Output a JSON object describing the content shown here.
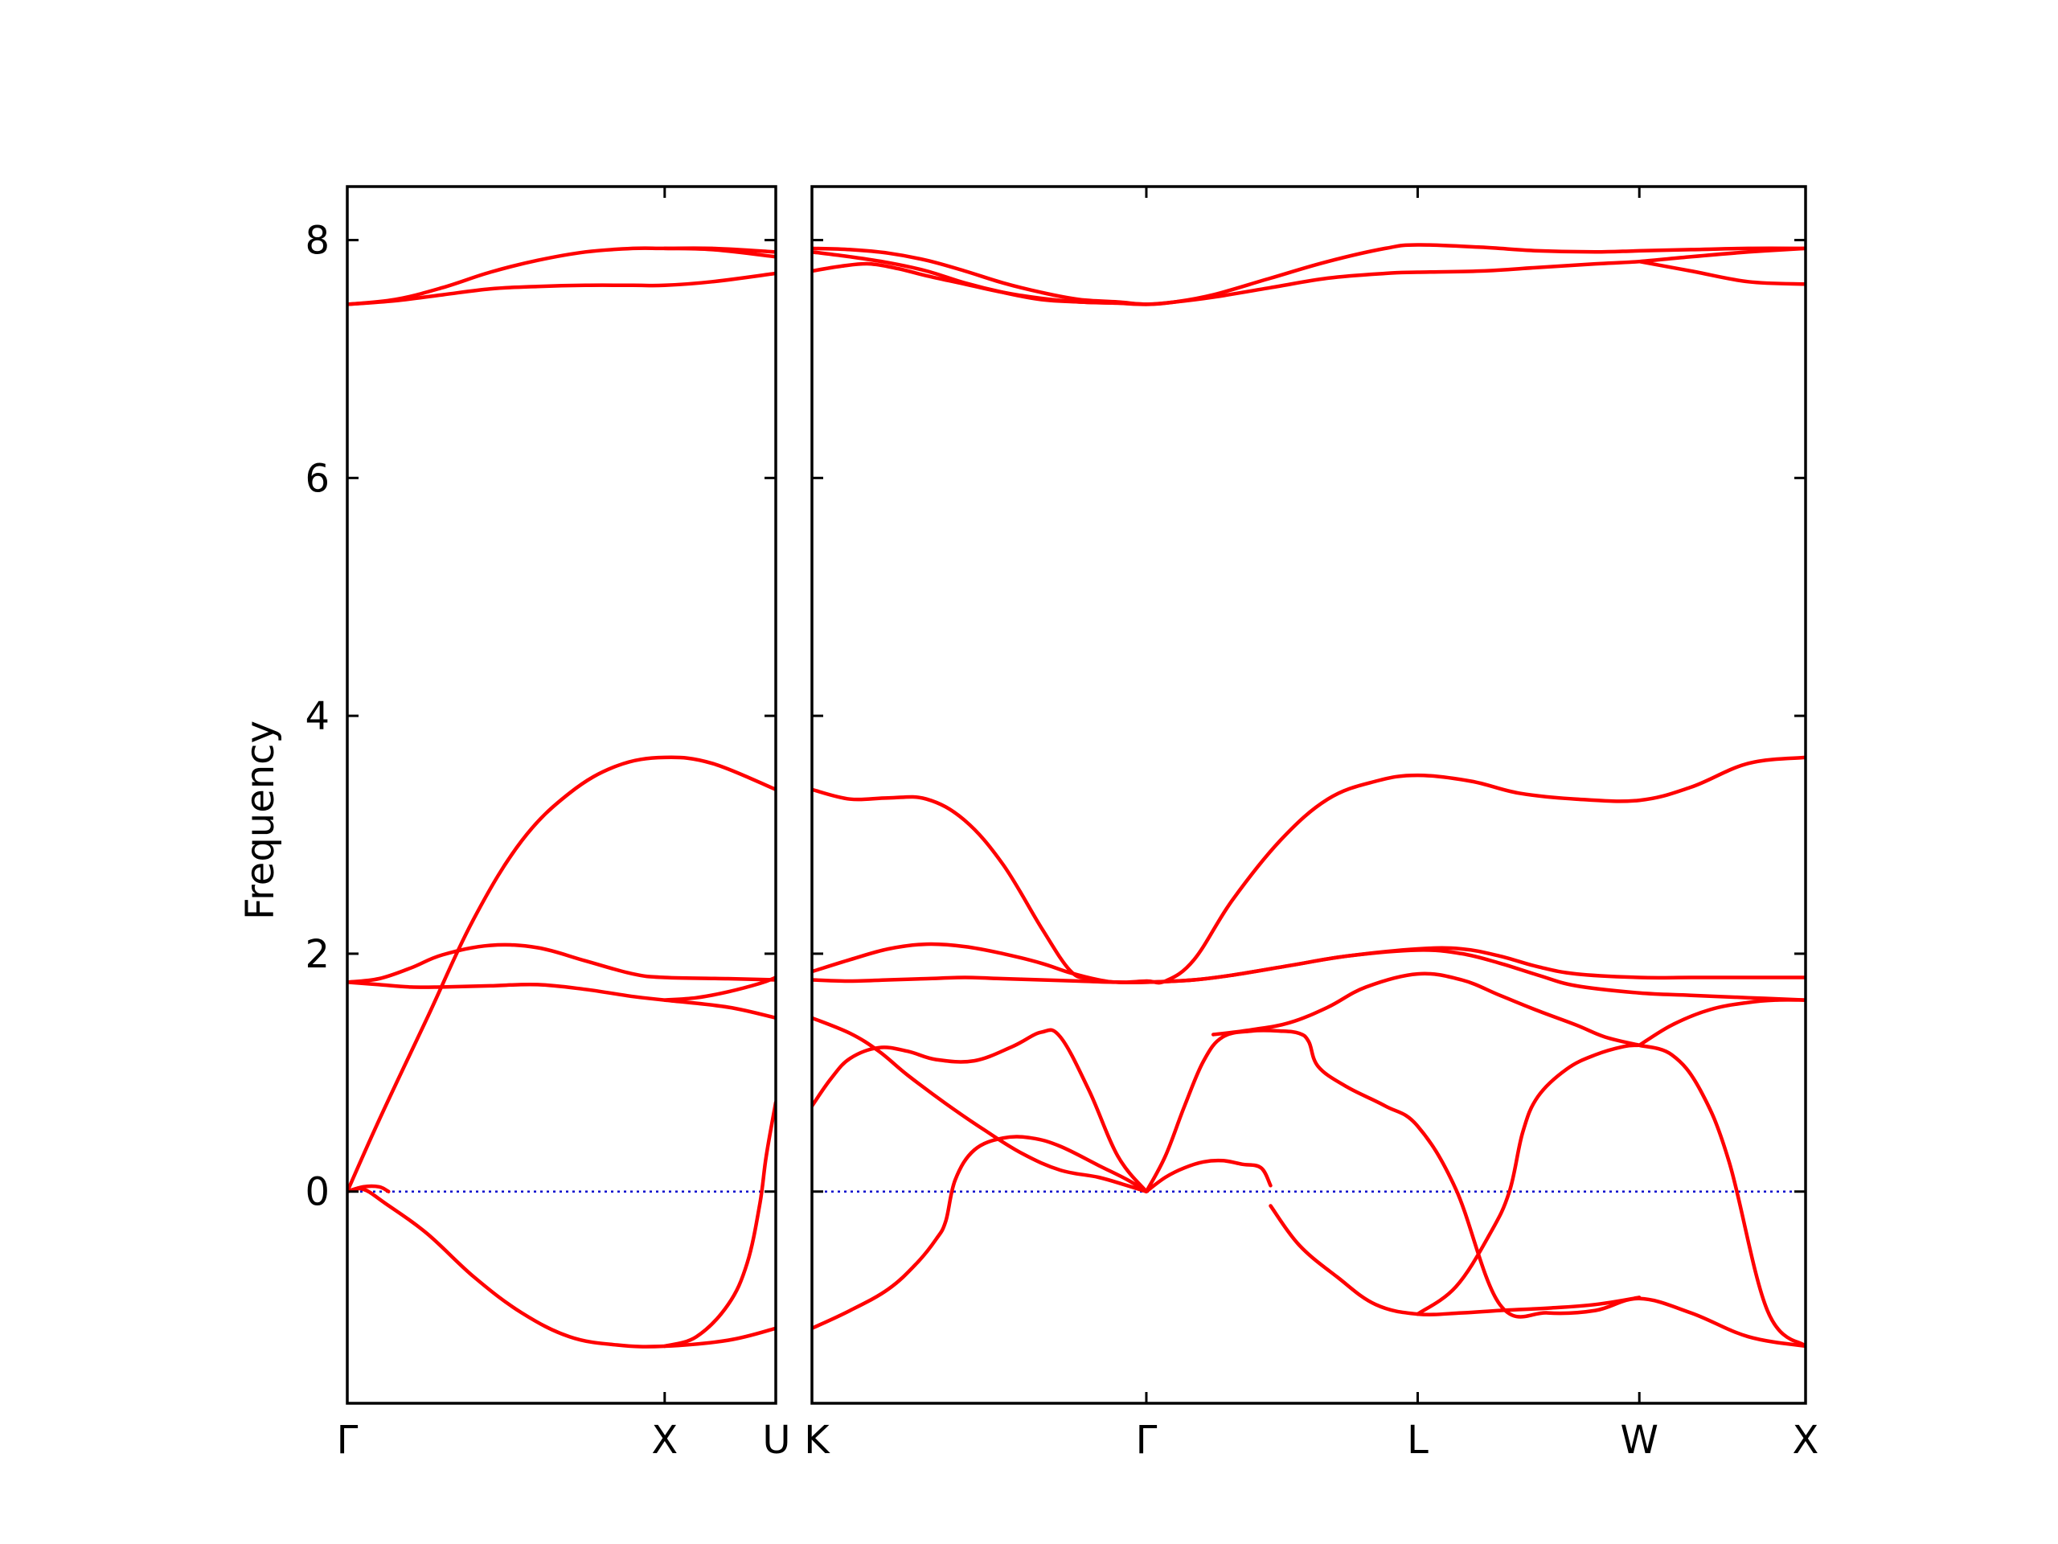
{
  "chart_data": {
    "type": "line",
    "ylabel": "Frequency",
    "ylim": [
      -1.78,
      8.45
    ],
    "yticks": [
      0,
      2,
      4,
      6,
      8
    ],
    "grid": false,
    "legend": "none",
    "colors": {
      "bands": "#ff0000",
      "zero_line": "#0000cc",
      "axes": "#000000"
    },
    "panels": [
      {
        "xrange": [
          0,
          1.35
        ],
        "ticks": [
          {
            "x": 0,
            "label": "Γ"
          },
          {
            "x": 1.0,
            "label": "X"
          },
          {
            "x": 1.35,
            "label": "U"
          }
        ],
        "series": [
          {
            "x": [
              0,
              0.05,
              0.12,
              0.25,
              0.4,
              0.55,
              0.7,
              0.85,
              1.0,
              1.2,
              1.35
            ],
            "y": [
              0.0,
              0.02,
              -0.1,
              -0.35,
              -0.72,
              -1.02,
              -1.22,
              -1.29,
              -1.3,
              -1.25,
              -1.15
            ]
          },
          {
            "x": [
              0,
              0.05,
              0.1,
              0.13
            ],
            "y": [
              0.0,
              0.04,
              0.04,
              0.0
            ]
          },
          {
            "x": [
              1.0,
              1.1,
              1.2,
              1.26,
              1.3,
              1.32,
              1.35
            ],
            "y": [
              -1.3,
              -1.22,
              -0.95,
              -0.6,
              -0.1,
              0.3,
              0.75
            ]
          },
          {
            "x": [
              0,
              0.1,
              0.25,
              0.4,
              0.55,
              0.7,
              0.85,
              1.0,
              1.15,
              1.35
            ],
            "y": [
              0.0,
              0.6,
              1.45,
              2.3,
              2.95,
              3.35,
              3.58,
              3.65,
              3.6,
              3.38
            ]
          },
          {
            "x": [
              0,
              0.1,
              0.2,
              0.3,
              0.45,
              0.6,
              0.75,
              0.9,
              1.0,
              1.2,
              1.35
            ],
            "y": [
              1.76,
              1.74,
              1.72,
              1.72,
              1.73,
              1.74,
              1.7,
              1.64,
              1.61,
              1.55,
              1.46
            ]
          },
          {
            "x": [
              0,
              0.1,
              0.2,
              0.3,
              0.45,
              0.6,
              0.75,
              0.9,
              1.0,
              1.2,
              1.35
            ],
            "y": [
              1.76,
              1.79,
              1.88,
              1.99,
              2.07,
              2.05,
              1.94,
              1.83,
              1.8,
              1.79,
              1.78
            ]
          },
          {
            "x": [
              1.0,
              1.1,
              1.2,
              1.3,
              1.35
            ],
            "y": [
              1.61,
              1.63,
              1.68,
              1.75,
              1.8
            ]
          },
          {
            "x": [
              0,
              0.15,
              0.3,
              0.45,
              0.6,
              0.75,
              0.9,
              1.0,
              1.15,
              1.35
            ],
            "y": [
              7.46,
              7.49,
              7.54,
              7.59,
              7.61,
              7.62,
              7.62,
              7.62,
              7.65,
              7.72
            ]
          },
          {
            "x": [
              0,
              0.15,
              0.3,
              0.45,
              0.6,
              0.75,
              0.9,
              1.0,
              1.15,
              1.35
            ],
            "y": [
              7.46,
              7.5,
              7.6,
              7.73,
              7.83,
              7.9,
              7.93,
              7.93,
              7.93,
              7.9
            ]
          },
          {
            "x": [
              1.0,
              1.15,
              1.35
            ],
            "y": [
              7.93,
              7.92,
              7.86
            ]
          }
        ]
      },
      {
        "xrange": [
          0,
          5.2
        ],
        "ticks": [
          {
            "x": 0,
            "label": "K"
          },
          {
            "x": 1.75,
            "label": "Γ"
          },
          {
            "x": 3.17,
            "label": "L"
          },
          {
            "x": 4.33,
            "label": "W"
          },
          {
            "x": 5.2,
            "label": "X"
          }
        ],
        "series": [
          {
            "x": [
              0,
              0.2,
              0.4,
              0.55,
              0.65,
              0.7,
              0.75,
              0.85,
              1.0,
              1.15,
              1.3,
              1.5,
              1.65,
              1.75
            ],
            "y": [
              -1.15,
              -1.0,
              -0.82,
              -0.6,
              -0.4,
              -0.25,
              0.1,
              0.35,
              0.45,
              0.45,
              0.38,
              0.22,
              0.1,
              0.0
            ]
          },
          {
            "x": [
              0,
              0.2,
              0.35,
              0.5,
              0.7,
              0.9,
              1.1,
              1.3,
              1.5,
              1.65,
              1.75
            ],
            "y": [
              1.46,
              1.33,
              1.18,
              0.98,
              0.74,
              0.52,
              0.32,
              0.18,
              0.12,
              0.05,
              0.0
            ]
          },
          {
            "x": [
              0,
              0.1,
              0.2,
              0.35,
              0.5,
              0.65,
              0.85,
              1.05,
              1.2,
              1.3,
              1.45,
              1.6,
              1.75
            ],
            "y": [
              0.72,
              0.95,
              1.12,
              1.21,
              1.18,
              1.11,
              1.1,
              1.22,
              1.34,
              1.3,
              0.85,
              0.3,
              0.0
            ]
          },
          {
            "x": [
              1.75,
              1.85,
              1.95,
              2.05,
              2.15,
              2.3,
              2.45,
              2.55,
              2.6,
              2.65,
              2.8,
              3.0,
              3.17,
              3.37,
              3.6,
              3.85,
              4.1,
              4.33,
              4.6,
              4.9,
              5.2
            ],
            "y": [
              0.0,
              0.3,
              0.72,
              1.1,
              1.3,
              1.35,
              1.35,
              1.33,
              1.26,
              1.05,
              0.88,
              0.72,
              0.55,
              0.02,
              -0.95,
              -1.02,
              -1.0,
              -0.9,
              -1.02,
              -1.22,
              -1.3
            ]
          },
          {
            "x": [
              1.75,
              1.85,
              1.95,
              2.05,
              2.15,
              2.25,
              2.35,
              2.4
            ],
            "y": [
              0.0,
              0.12,
              0.2,
              0.25,
              0.26,
              0.23,
              0.2,
              0.05
            ]
          },
          {
            "x": [
              2.4,
              2.55,
              2.75,
              2.95,
              3.17,
              3.4,
              3.6,
              3.85,
              4.1,
              4.33
            ],
            "y": [
              -0.12,
              -0.45,
              -0.72,
              -0.95,
              -1.03,
              -1.02,
              -1.0,
              -0.98,
              -0.95,
              -0.89
            ]
          },
          {
            "x": [
              3.17,
              3.37,
              3.55,
              3.65,
              3.72,
              3.8,
              3.95,
              4.1,
              4.25,
              4.33
            ],
            "y": [
              -1.03,
              -0.8,
              -0.35,
              0.0,
              0.5,
              0.8,
              1.03,
              1.15,
              1.22,
              1.23
            ]
          },
          {
            "x": [
              4.33,
              4.5,
              4.65,
              4.8,
              5.0,
              5.2
            ],
            "y": [
              1.23,
              1.15,
              0.85,
              0.25,
              -1.0,
              -1.3
            ]
          },
          {
            "x": [
              4.33,
              4.5,
              4.7,
              4.9,
              5.05,
              5.2
            ],
            "y": [
              1.23,
              1.4,
              1.53,
              1.59,
              1.61,
              1.61
            ]
          },
          {
            "x": [
              2.1,
              2.3,
              2.5,
              2.7,
              2.9,
              3.17,
              3.4,
              3.6,
              3.8,
              4.0,
              4.15,
              4.33
            ],
            "y": [
              1.32,
              1.36,
              1.42,
              1.55,
              1.72,
              1.83,
              1.78,
              1.65,
              1.52,
              1.4,
              1.3,
              1.23
            ]
          },
          {
            "x": [
              0,
              0.2,
              0.4,
              0.6,
              0.8,
              1.0,
              1.2,
              1.4,
              1.6,
              1.75,
              2.0,
              2.2,
              2.5,
              2.8,
              3.17,
              3.4,
              3.6,
              3.8,
              4.0,
              4.33,
              4.6,
              4.9,
              5.2
            ],
            "y": [
              1.78,
              1.77,
              1.78,
              1.79,
              1.8,
              1.79,
              1.78,
              1.77,
              1.76,
              1.76,
              1.78,
              1.82,
              1.9,
              1.98,
              2.03,
              2.0,
              1.92,
              1.82,
              1.73,
              1.67,
              1.65,
              1.63,
              1.61
            ]
          },
          {
            "x": [
              0,
              0.2,
              0.4,
              0.6,
              0.8,
              1.0,
              1.2,
              1.35,
              1.5,
              1.6,
              1.75,
              2.0,
              2.2,
              2.5,
              2.8,
              3.17,
              3.4,
              3.6,
              3.8,
              4.0,
              4.33,
              4.6,
              4.9,
              5.2
            ],
            "y": [
              1.85,
              1.95,
              2.04,
              2.08,
              2.06,
              2.0,
              1.92,
              1.84,
              1.78,
              1.76,
              1.76,
              1.78,
              1.82,
              1.9,
              1.98,
              2.04,
              2.04,
              1.98,
              1.89,
              1.83,
              1.8,
              1.8,
              1.8,
              1.8
            ]
          },
          {
            "x": [
              0,
              0.2,
              0.4,
              0.6,
              0.8,
              1.0,
              1.2,
              1.35,
              1.45,
              1.6,
              1.75,
              1.85,
              2.0,
              2.2,
              2.45,
              2.7,
              2.95,
              3.17,
              3.45,
              3.7,
              4.0,
              4.33,
              4.6,
              4.9,
              5.2
            ],
            "y": [
              3.38,
              3.3,
              3.31,
              3.3,
              3.12,
              2.75,
              2.22,
              1.86,
              1.79,
              1.76,
              1.77,
              1.77,
              1.95,
              2.45,
              2.95,
              3.3,
              3.45,
              3.5,
              3.45,
              3.35,
              3.3,
              3.29,
              3.4,
              3.6,
              3.65
            ]
          },
          {
            "x": [
              0,
              0.2,
              0.4,
              0.6,
              0.8,
              1.0,
              1.2,
              1.4,
              1.6,
              1.75,
              1.9,
              2.1,
              2.4,
              2.7,
              3.0,
              3.17,
              3.5,
              3.8,
              4.1,
              4.33,
              4.6,
              4.9,
              5.2
            ],
            "y": [
              7.9,
              7.86,
              7.81,
              7.74,
              7.64,
              7.56,
              7.5,
              7.48,
              7.47,
              7.46,
              7.48,
              7.52,
              7.6,
              7.68,
              7.72,
              7.73,
              7.74,
              7.77,
              7.8,
              7.82,
              7.86,
              7.9,
              7.93
            ]
          },
          {
            "x": [
              0,
              0.2,
              0.4,
              0.6,
              0.8,
              1.0,
              1.2,
              1.4,
              1.6,
              1.75,
              1.9,
              2.1,
              2.4,
              2.7,
              3.0,
              3.17,
              3.5,
              3.8,
              4.1,
              4.33,
              4.6,
              4.9,
              5.2
            ],
            "y": [
              7.93,
              7.92,
              7.89,
              7.83,
              7.74,
              7.64,
              7.56,
              7.5,
              7.48,
              7.46,
              7.48,
              7.54,
              7.68,
              7.82,
              7.93,
              7.96,
              7.94,
              7.91,
              7.9,
              7.91,
              7.92,
              7.93,
              7.93
            ]
          },
          {
            "x": [
              0,
              0.15,
              0.3,
              0.45,
              0.6,
              0.8,
              1.0,
              1.2,
              1.4,
              1.6,
              1.75
            ],
            "y": [
              7.74,
              7.78,
              7.8,
              7.76,
              7.7,
              7.63,
              7.56,
              7.51,
              7.48,
              7.47,
              7.46
            ]
          },
          {
            "x": [
              4.33,
              4.6,
              4.9,
              5.2
            ],
            "y": [
              7.82,
              7.74,
              7.65,
              7.63
            ]
          }
        ]
      }
    ]
  }
}
